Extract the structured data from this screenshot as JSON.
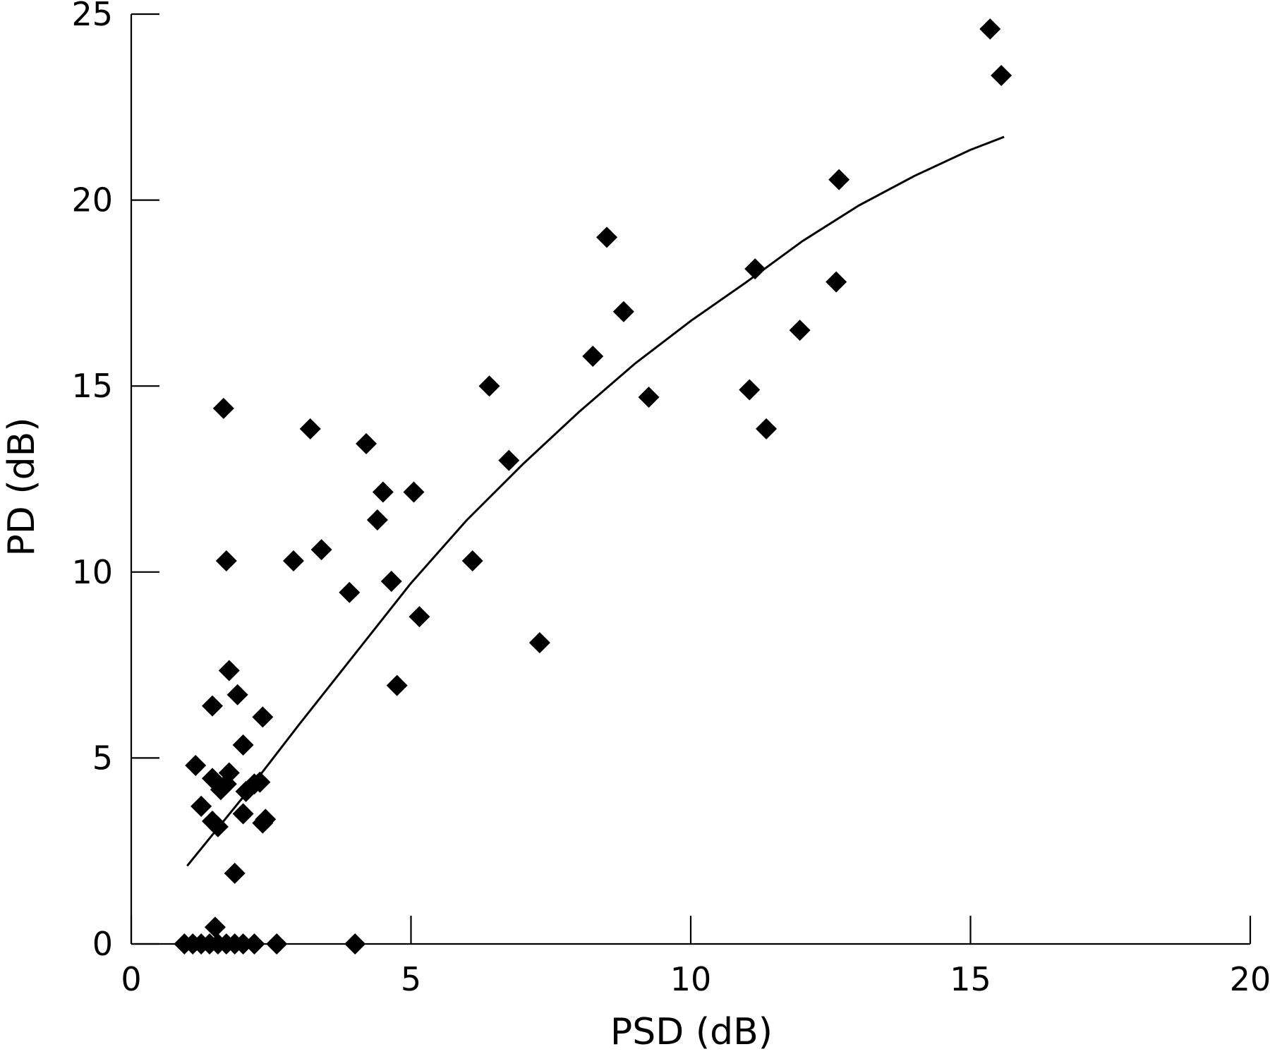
{
  "chart_data": {
    "type": "scatter",
    "title": "",
    "xlabel": "PSD (dB)",
    "ylabel": "PD (dB)",
    "xlim": [
      0,
      20
    ],
    "ylim": [
      0,
      25
    ],
    "xticks": [
      0,
      5,
      10,
      15,
      20
    ],
    "yticks": [
      0,
      5,
      10,
      15,
      20,
      25
    ],
    "x_tick_labels": [
      "0",
      "5",
      "10",
      "15",
      "20"
    ],
    "y_tick_labels": [
      "0",
      "5",
      "10",
      "15",
      "20",
      "25"
    ],
    "grid": false,
    "legend": "none",
    "colors": {
      "points": "#000000",
      "line": "#000000"
    },
    "points": [
      {
        "x": 0.95,
        "y": 0
      },
      {
        "x": 1.1,
        "y": 0
      },
      {
        "x": 1.25,
        "y": 0
      },
      {
        "x": 1.4,
        "y": 0
      },
      {
        "x": 1.55,
        "y": 0
      },
      {
        "x": 1.7,
        "y": 0
      },
      {
        "x": 1.85,
        "y": 0
      },
      {
        "x": 2.0,
        "y": 0
      },
      {
        "x": 2.2,
        "y": 0
      },
      {
        "x": 2.6,
        "y": 0
      },
      {
        "x": 4.0,
        "y": 0
      },
      {
        "x": 1.5,
        "y": 0.45
      },
      {
        "x": 1.85,
        "y": 1.9
      },
      {
        "x": 1.45,
        "y": 3.3
      },
      {
        "x": 1.55,
        "y": 3.15
      },
      {
        "x": 1.25,
        "y": 3.7
      },
      {
        "x": 1.15,
        "y": 4.8
      },
      {
        "x": 1.45,
        "y": 4.45
      },
      {
        "x": 1.6,
        "y": 4.15
      },
      {
        "x": 1.7,
        "y": 4.3
      },
      {
        "x": 1.75,
        "y": 4.6
      },
      {
        "x": 1.45,
        "y": 6.4
      },
      {
        "x": 1.75,
        "y": 7.35
      },
      {
        "x": 1.9,
        "y": 6.7
      },
      {
        "x": 2.0,
        "y": 5.35
      },
      {
        "x": 2.0,
        "y": 3.5
      },
      {
        "x": 2.05,
        "y": 4.1
      },
      {
        "x": 2.2,
        "y": 4.3
      },
      {
        "x": 2.3,
        "y": 4.35
      },
      {
        "x": 2.35,
        "y": 3.25
      },
      {
        "x": 2.4,
        "y": 3.35
      },
      {
        "x": 2.35,
        "y": 6.1
      },
      {
        "x": 1.7,
        "y": 10.3
      },
      {
        "x": 1.65,
        "y": 14.4
      },
      {
        "x": 2.9,
        "y": 10.3
      },
      {
        "x": 3.2,
        "y": 13.85
      },
      {
        "x": 3.4,
        "y": 10.6
      },
      {
        "x": 3.9,
        "y": 9.45
      },
      {
        "x": 4.2,
        "y": 13.45
      },
      {
        "x": 4.4,
        "y": 11.4
      },
      {
        "x": 4.5,
        "y": 12.15
      },
      {
        "x": 4.65,
        "y": 9.75
      },
      {
        "x": 4.75,
        "y": 6.95
      },
      {
        "x": 5.05,
        "y": 12.15
      },
      {
        "x": 5.15,
        "y": 8.8
      },
      {
        "x": 6.1,
        "y": 10.3
      },
      {
        "x": 6.4,
        "y": 15.0
      },
      {
        "x": 6.75,
        "y": 13.0
      },
      {
        "x": 7.3,
        "y": 8.1
      },
      {
        "x": 8.25,
        "y": 15.8
      },
      {
        "x": 8.5,
        "y": 19.0
      },
      {
        "x": 8.8,
        "y": 17.0
      },
      {
        "x": 9.25,
        "y": 14.7
      },
      {
        "x": 11.05,
        "y": 14.9
      },
      {
        "x": 11.15,
        "y": 18.15
      },
      {
        "x": 11.35,
        "y": 13.85
      },
      {
        "x": 11.95,
        "y": 16.5
      },
      {
        "x": 12.6,
        "y": 17.8
      },
      {
        "x": 12.65,
        "y": 20.55
      },
      {
        "x": 15.35,
        "y": 24.6
      },
      {
        "x": 15.55,
        "y": 23.35
      }
    ],
    "fit_line": {
      "x": [
        1.0,
        2.0,
        3.0,
        4.0,
        5.0,
        6.0,
        7.0,
        8.0,
        9.0,
        10.0,
        11.0,
        12.0,
        13.0,
        14.0,
        15.0,
        15.6
      ],
      "y": [
        2.1,
        3.95,
        5.9,
        7.8,
        9.7,
        11.4,
        12.9,
        14.3,
        15.6,
        16.75,
        17.8,
        18.9,
        19.85,
        20.65,
        21.35,
        21.7
      ]
    }
  }
}
